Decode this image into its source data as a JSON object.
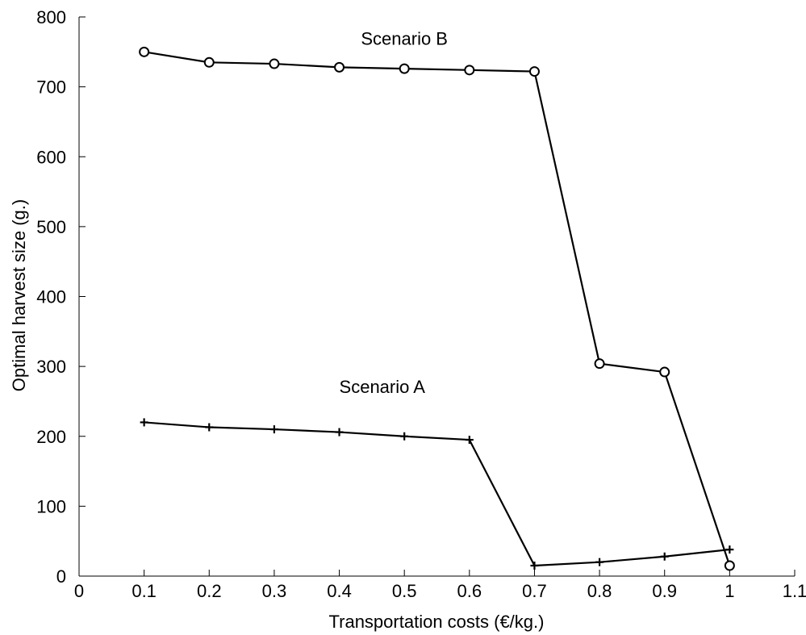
{
  "chart_data": {
    "type": "line",
    "xlabel": "Transportation costs (€/kg.)",
    "ylabel": "Optimal harvest size (g.)",
    "xlim": [
      0,
      1.1
    ],
    "ylim": [
      0,
      800
    ],
    "xticks": [
      0,
      0.1,
      0.2,
      0.3,
      0.4,
      0.5,
      0.6,
      0.7,
      0.8,
      0.9,
      1,
      1.1
    ],
    "xtick_labels": [
      "0",
      "0.1",
      "0.2",
      "0.3",
      "0.4",
      "0.5",
      "0.6",
      "0.7",
      "0.8",
      "0.9",
      "1",
      "1.1"
    ],
    "yticks": [
      0,
      100,
      200,
      300,
      400,
      500,
      600,
      700,
      800
    ],
    "ytick_labels": [
      "0",
      "100",
      "200",
      "300",
      "400",
      "500",
      "600",
      "700",
      "800"
    ],
    "grid": false,
    "legend": "none",
    "line_color": "#000000",
    "x": [
      0.1,
      0.2,
      0.3,
      0.4,
      0.5,
      0.6,
      0.7,
      0.8,
      0.9,
      1.0
    ],
    "series": [
      {
        "name": "Scenario B",
        "marker": "circle",
        "values": [
          750,
          735,
          733,
          728,
          726,
          724,
          722,
          304,
          292,
          15
        ]
      },
      {
        "name": "Scenario A",
        "marker": "plus",
        "values": [
          220,
          213,
          210,
          206,
          200,
          195,
          15,
          20,
          28,
          38
        ]
      }
    ],
    "annotations": [
      {
        "text": "Scenario B",
        "x": 0.5,
        "y": 760,
        "anchor": "middle"
      },
      {
        "text": "Scenario A",
        "x": 0.4,
        "y": 262,
        "anchor": "start"
      }
    ]
  }
}
